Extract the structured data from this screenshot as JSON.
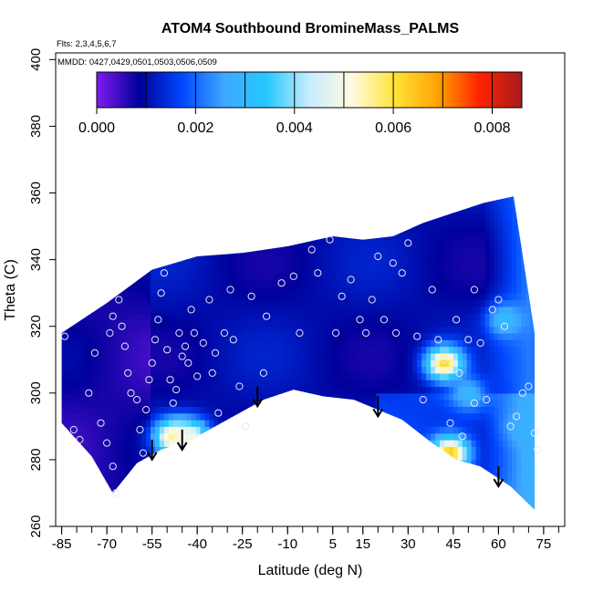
{
  "chart_data": {
    "type": "heatmap",
    "title": "ATOM4 Southbound BromineMass_PALMS",
    "flights_label": "Flts: 2,3,4,5,6,7",
    "dates_label": "MMDD: 0427,0429,0501,0503,0506,0509",
    "xlabel": "Latitude (deg N)",
    "ylabel": "Theta (C)",
    "xlim": [
      -87,
      82
    ],
    "ylim": [
      260,
      402
    ],
    "x_ticks": [
      -85,
      -70,
      -55,
      -40,
      -25,
      -10,
      5,
      15,
      30,
      45,
      60,
      75
    ],
    "y_ticks": [
      260,
      280,
      300,
      320,
      340,
      360,
      380,
      400
    ],
    "colorbar": {
      "range": [
        0,
        0.0086
      ],
      "ticks": [
        "0.000",
        "0.002",
        "0.004",
        "0.006",
        "0.008"
      ],
      "tick_values": [
        0,
        0.002,
        0.004,
        0.006,
        0.008
      ],
      "colors": [
        "#7f1cf0",
        "#00009a",
        "#0046ff",
        "#3fa8ff",
        "#25c8ff",
        "#c8ecff",
        "#fffbe0",
        "#ffe43a",
        "#ffa500",
        "#ff2200",
        "#a61c1c"
      ]
    },
    "surface_boundary": [
      [
        -85,
        291
      ],
      [
        -75,
        281
      ],
      [
        -68,
        270
      ],
      [
        -60,
        279
      ],
      [
        -52,
        283
      ],
      [
        -42,
        286
      ],
      [
        -30,
        292
      ],
      [
        -18,
        298
      ],
      [
        -8,
        301
      ],
      [
        2,
        299
      ],
      [
        12,
        298
      ],
      [
        20,
        295
      ],
      [
        28,
        292
      ],
      [
        38,
        285
      ],
      [
        46,
        280
      ],
      [
        54,
        278
      ],
      [
        64,
        272
      ],
      [
        72,
        265
      ]
    ],
    "top_boundary": [
      [
        -85,
        318
      ],
      [
        -70,
        327
      ],
      [
        -55,
        337
      ],
      [
        -40,
        341
      ],
      [
        -25,
        342
      ],
      [
        -10,
        344
      ],
      [
        5,
        347
      ],
      [
        15,
        346
      ],
      [
        25,
        347
      ],
      [
        35,
        351
      ],
      [
        45,
        354
      ],
      [
        55,
        357
      ],
      [
        65,
        359
      ],
      [
        72,
        318
      ]
    ],
    "field_features": [
      {
        "x": 42,
        "y": 309,
        "value": 0.0062
      },
      {
        "x": 44,
        "y": 282,
        "value": 0.0065
      },
      {
        "x": -48,
        "y": 287,
        "value": 0.0058
      },
      {
        "x": -42,
        "y": 287,
        "value": 0.005
      },
      {
        "x": 62,
        "y": 322,
        "value": 0.0031
      },
      {
        "x": 68,
        "y": 290,
        "value": 0.0028
      },
      {
        "x": 50,
        "y": 300,
        "value": 0.003
      }
    ],
    "descent_arrows": [
      [
        -55,
        280
      ],
      [
        -45,
        283
      ],
      [
        -20,
        296
      ],
      [
        20,
        293
      ],
      [
        60,
        272
      ]
    ],
    "sample_points": [
      [
        -84,
        317
      ],
      [
        -81,
        289
      ],
      [
        -79,
        286
      ],
      [
        -76,
        300
      ],
      [
        -74,
        312
      ],
      [
        -72,
        291
      ],
      [
        -70,
        285
      ],
      [
        -68,
        278
      ],
      [
        -67,
        270
      ],
      [
        -69,
        318
      ],
      [
        -68,
        323
      ],
      [
        -66,
        328
      ],
      [
        -65,
        320
      ],
      [
        -64,
        314
      ],
      [
        -63,
        306
      ],
      [
        -62,
        300
      ],
      [
        -60,
        298
      ],
      [
        -59,
        289
      ],
      [
        -58,
        282
      ],
      [
        -57,
        295
      ],
      [
        -56,
        304
      ],
      [
        -55,
        309
      ],
      [
        -54,
        316
      ],
      [
        -53,
        322
      ],
      [
        -52,
        330
      ],
      [
        -51,
        336
      ],
      [
        -50,
        313
      ],
      [
        -49,
        304
      ],
      [
        -48,
        297
      ],
      [
        -47,
        301
      ],
      [
        -46,
        318
      ],
      [
        -45,
        311
      ],
      [
        -44,
        314
      ],
      [
        -43,
        309
      ],
      [
        -42,
        325
      ],
      [
        -41,
        318
      ],
      [
        -40,
        305
      ],
      [
        -38,
        315
      ],
      [
        -36,
        328
      ],
      [
        -34,
        312
      ],
      [
        -33,
        294
      ],
      [
        -31,
        318
      ],
      [
        -29,
        331
      ],
      [
        -28,
        316
      ],
      [
        -26,
        302
      ],
      [
        -24,
        290
      ],
      [
        -22,
        329
      ],
      [
        -17,
        323
      ],
      [
        -12,
        333
      ],
      [
        -8,
        335
      ],
      [
        -2,
        343
      ],
      [
        0,
        336
      ],
      [
        4,
        346
      ],
      [
        8,
        329
      ],
      [
        11,
        334
      ],
      [
        14,
        322
      ],
      [
        16,
        318
      ],
      [
        18,
        328
      ],
      [
        20,
        341
      ],
      [
        22,
        322
      ],
      [
        25,
        339
      ],
      [
        28,
        336
      ],
      [
        30,
        345
      ],
      [
        33,
        317
      ],
      [
        35,
        298
      ],
      [
        38,
        331
      ],
      [
        40,
        316
      ],
      [
        42,
        310
      ],
      [
        44,
        291
      ],
      [
        46,
        322
      ],
      [
        48,
        287
      ],
      [
        50,
        316
      ],
      [
        52,
        331
      ],
      [
        54,
        315
      ],
      [
        56,
        298
      ],
      [
        58,
        325
      ],
      [
        60,
        328
      ],
      [
        62,
        320
      ],
      [
        64,
        290
      ],
      [
        66,
        293
      ],
      [
        68,
        300
      ],
      [
        70,
        302
      ],
      [
        72,
        288
      ],
      [
        73,
        283
      ],
      [
        52,
        297
      ],
      [
        47,
        306
      ],
      [
        -18,
        306
      ],
      [
        -6,
        318
      ],
      [
        6,
        318
      ],
      [
        26,
        318
      ],
      [
        -35,
        306
      ]
    ]
  }
}
